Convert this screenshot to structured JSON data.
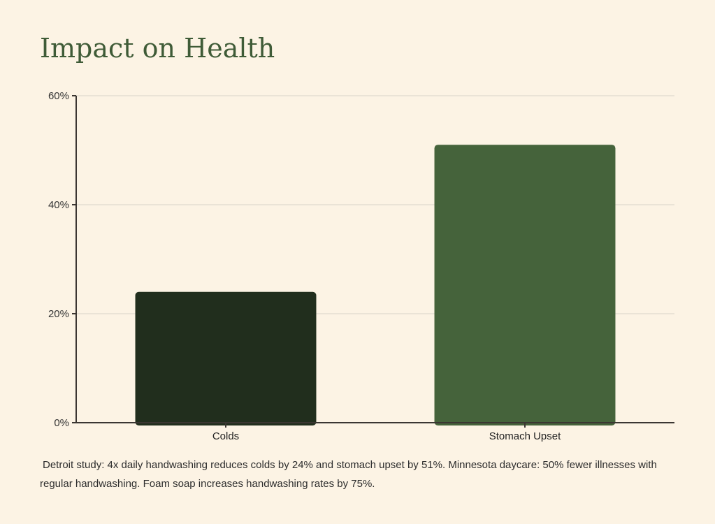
{
  "title": "Impact on Health",
  "caption": "Detroit study: 4x daily handwashing reduces colds by 24% and stomach upset by 51%. Minnesota daycare: 50% fewer illnesses with regular handwashing. Foam soap increases handwashing rates by 75%.",
  "colors": {
    "background": "#fcf3e4",
    "title": "#3f5b37",
    "gridline": "#d9d3c8",
    "axis": "#3b3632"
  },
  "chart_data": {
    "type": "bar",
    "title": "",
    "xlabel": "",
    "ylabel": "",
    "categories": [
      "Colds",
      "Stomach Upset"
    ],
    "values": [
      24,
      51
    ],
    "bar_colors": [
      "#212e1d",
      "#45633b"
    ],
    "ylim": [
      0,
      60
    ],
    "yticks": [
      0,
      20,
      40,
      60
    ],
    "ytick_labels": [
      "0%",
      "20%",
      "40%",
      "60%"
    ],
    "grid": true,
    "legend": "none"
  }
}
